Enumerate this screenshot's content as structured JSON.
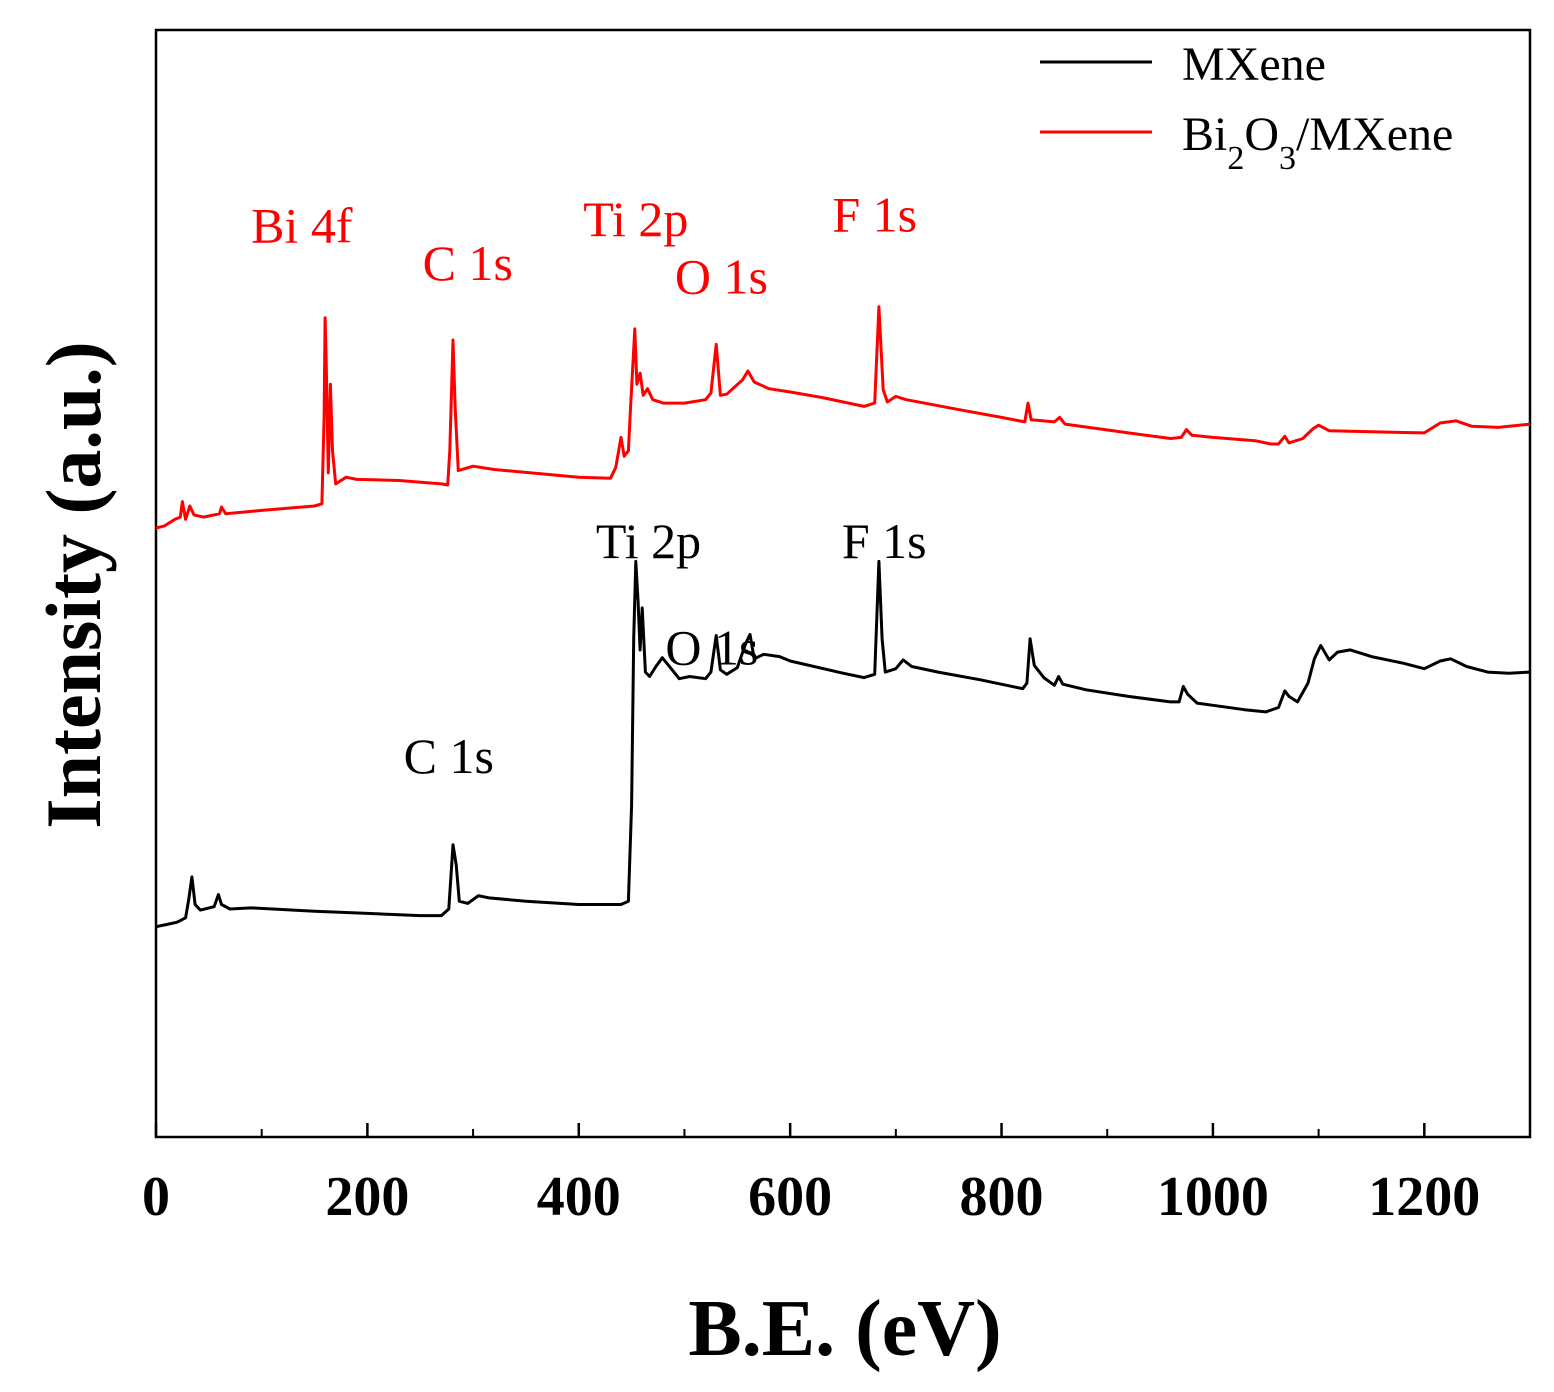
{
  "chart_data": {
    "type": "line",
    "title": "",
    "xlabel": "B.E. (eV)",
    "ylabel": "Intensity (a.u.)",
    "xlim": [
      0,
      1300
    ],
    "ylim": [
      0,
      100
    ],
    "x_ticks": [
      0,
      200,
      400,
      600,
      800,
      1000,
      1200
    ],
    "x_tick_labels": [
      "0",
      "200",
      "400",
      "600",
      "800",
      "1000",
      "1200"
    ],
    "x_minor_ticks": [
      100,
      300,
      500,
      700,
      900,
      1100
    ],
    "legend": {
      "position": "top-right",
      "entries": [
        {
          "series": "MXene",
          "text": "MXene"
        },
        {
          "series": "Bi2O3/MXene",
          "parts": [
            {
              "text": "Bi",
              "sub": false
            },
            {
              "text": "2",
              "sub": true
            },
            {
              "text": "O",
              "sub": false
            },
            {
              "text": "3",
              "sub": true
            },
            {
              "text": "/MXene",
              "sub": false
            }
          ]
        }
      ]
    },
    "series": [
      {
        "name": "MXene",
        "color": "#000000",
        "points": [
          [
            0,
            19.0
          ],
          [
            10,
            19.2
          ],
          [
            20,
            19.4
          ],
          [
            28,
            19.8
          ],
          [
            31,
            21.5
          ],
          [
            34,
            23.5
          ],
          [
            37,
            21.0
          ],
          [
            42,
            20.5
          ],
          [
            55,
            20.8
          ],
          [
            59,
            21.9
          ],
          [
            62,
            21.0
          ],
          [
            70,
            20.6
          ],
          [
            90,
            20.7
          ],
          [
            150,
            20.4
          ],
          [
            200,
            20.2
          ],
          [
            250,
            20.0
          ],
          [
            270,
            20.0
          ],
          [
            277,
            20.6
          ],
          [
            281,
            26.4
          ],
          [
            284,
            24.6
          ],
          [
            287,
            21.3
          ],
          [
            295,
            21.1
          ],
          [
            305,
            21.8
          ],
          [
            315,
            21.6
          ],
          [
            350,
            21.3
          ],
          [
            400,
            21.0
          ],
          [
            440,
            21.0
          ],
          [
            447,
            21.3
          ],
          [
            450,
            30.0
          ],
          [
            452,
            45.0
          ],
          [
            454,
            52.0
          ],
          [
            456,
            48.5
          ],
          [
            458,
            44.0
          ],
          [
            460,
            47.8
          ],
          [
            463,
            42.0
          ],
          [
            467,
            41.6
          ],
          [
            473,
            42.5
          ],
          [
            479,
            43.3
          ],
          [
            485,
            42.6
          ],
          [
            495,
            41.4
          ],
          [
            505,
            41.6
          ],
          [
            520,
            41.4
          ],
          [
            525,
            42.0
          ],
          [
            530,
            45.3
          ],
          [
            534,
            42.2
          ],
          [
            540,
            41.8
          ],
          [
            550,
            42.4
          ],
          [
            558,
            44.6
          ],
          [
            562,
            45.4
          ],
          [
            566,
            43.2
          ],
          [
            575,
            43.6
          ],
          [
            590,
            43.4
          ],
          [
            600,
            43.0
          ],
          [
            650,
            41.9
          ],
          [
            670,
            41.5
          ],
          [
            680,
            41.8
          ],
          [
            684,
            52.0
          ],
          [
            687,
            45.0
          ],
          [
            690,
            42.0
          ],
          [
            700,
            42.3
          ],
          [
            707,
            43.1
          ],
          [
            715,
            42.5
          ],
          [
            740,
            42.0
          ],
          [
            780,
            41.3
          ],
          [
            820,
            40.5
          ],
          [
            824,
            41.0
          ],
          [
            827,
            45.0
          ],
          [
            831,
            42.6
          ],
          [
            840,
            41.5
          ],
          [
            850,
            40.8
          ],
          [
            854,
            41.6
          ],
          [
            858,
            40.9
          ],
          [
            880,
            40.4
          ],
          [
            920,
            39.8
          ],
          [
            960,
            39.3
          ],
          [
            968,
            39.3
          ],
          [
            972,
            40.7
          ],
          [
            976,
            40.0
          ],
          [
            985,
            39.2
          ],
          [
            1000,
            39.0
          ],
          [
            1030,
            38.6
          ],
          [
            1050,
            38.4
          ],
          [
            1062,
            38.8
          ],
          [
            1068,
            40.3
          ],
          [
            1072,
            39.8
          ],
          [
            1080,
            39.3
          ],
          [
            1090,
            41.0
          ],
          [
            1096,
            43.2
          ],
          [
            1102,
            44.4
          ],
          [
            1110,
            43.1
          ],
          [
            1118,
            43.8
          ],
          [
            1130,
            44.0
          ],
          [
            1150,
            43.4
          ],
          [
            1180,
            42.8
          ],
          [
            1200,
            42.3
          ],
          [
            1215,
            43.0
          ],
          [
            1225,
            43.2
          ],
          [
            1240,
            42.5
          ],
          [
            1260,
            42.0
          ],
          [
            1280,
            41.9
          ],
          [
            1300,
            42.0
          ]
        ]
      },
      {
        "name": "Bi2O3/MXene",
        "color": "#ff0000",
        "points": [
          [
            0,
            55.0
          ],
          [
            8,
            55.2
          ],
          [
            18,
            55.8
          ],
          [
            23,
            56.0
          ],
          [
            25,
            57.4
          ],
          [
            28,
            55.8
          ],
          [
            32,
            57.0
          ],
          [
            36,
            56.2
          ],
          [
            45,
            56.0
          ],
          [
            60,
            56.3
          ],
          [
            62,
            56.9
          ],
          [
            66,
            56.3
          ],
          [
            100,
            56.6
          ],
          [
            150,
            57.0
          ],
          [
            157,
            57.2
          ],
          [
            159,
            65.0
          ],
          [
            160,
            74.0
          ],
          [
            161,
            70.0
          ],
          [
            163,
            60.0
          ],
          [
            165,
            68.0
          ],
          [
            167,
            62.0
          ],
          [
            170,
            59.0
          ],
          [
            180,
            59.6
          ],
          [
            190,
            59.4
          ],
          [
            230,
            59.3
          ],
          [
            270,
            59.0
          ],
          [
            276,
            58.9
          ],
          [
            278,
            62.0
          ],
          [
            281,
            72.0
          ],
          [
            283,
            66.0
          ],
          [
            286,
            60.2
          ],
          [
            300,
            60.6
          ],
          [
            320,
            60.3
          ],
          [
            400,
            59.6
          ],
          [
            430,
            59.5
          ],
          [
            435,
            60.5
          ],
          [
            440,
            63.2
          ],
          [
            443,
            61.5
          ],
          [
            447,
            62.0
          ],
          [
            449,
            66.0
          ],
          [
            453,
            73.0
          ],
          [
            455,
            68.0
          ],
          [
            458,
            69.0
          ],
          [
            461,
            67.0
          ],
          [
            465,
            67.6
          ],
          [
            470,
            66.6
          ],
          [
            480,
            66.3
          ],
          [
            500,
            66.3
          ],
          [
            520,
            66.6
          ],
          [
            525,
            67.2
          ],
          [
            530,
            71.6
          ],
          [
            534,
            67.0
          ],
          [
            540,
            67.1
          ],
          [
            555,
            68.4
          ],
          [
            560,
            69.2
          ],
          [
            566,
            68.2
          ],
          [
            580,
            67.6
          ],
          [
            600,
            67.3
          ],
          [
            630,
            66.8
          ],
          [
            670,
            66.0
          ],
          [
            680,
            66.3
          ],
          [
            684,
            75.0
          ],
          [
            688,
            67.5
          ],
          [
            692,
            66.4
          ],
          [
            700,
            66.9
          ],
          [
            710,
            66.6
          ],
          [
            760,
            65.7
          ],
          [
            800,
            65.0
          ],
          [
            822,
            64.6
          ],
          [
            825,
            66.3
          ],
          [
            828,
            64.8
          ],
          [
            850,
            64.6
          ],
          [
            855,
            65.0
          ],
          [
            860,
            64.4
          ],
          [
            920,
            63.6
          ],
          [
            960,
            63.1
          ],
          [
            970,
            63.2
          ],
          [
            975,
            63.9
          ],
          [
            980,
            63.4
          ],
          [
            1000,
            63.2
          ],
          [
            1040,
            62.9
          ],
          [
            1055,
            62.6
          ],
          [
            1062,
            62.6
          ],
          [
            1068,
            63.3
          ],
          [
            1072,
            62.7
          ],
          [
            1085,
            63.1
          ],
          [
            1095,
            64.0
          ],
          [
            1100,
            64.3
          ],
          [
            1110,
            63.8
          ],
          [
            1150,
            63.7
          ],
          [
            1200,
            63.6
          ],
          [
            1215,
            64.5
          ],
          [
            1230,
            64.7
          ],
          [
            1245,
            64.2
          ],
          [
            1270,
            64.1
          ],
          [
            1300,
            64.4
          ]
        ]
      }
    ],
    "annotations": [
      {
        "series": "Bi2O3/MXene",
        "text": "Bi 4f",
        "x": 138,
        "y": 80.8
      },
      {
        "series": "Bi2O3/MXene",
        "text": "C 1s",
        "x": 295,
        "y": 77.4
      },
      {
        "series": "Bi2O3/MXene",
        "text": "Ti 2p",
        "x": 454,
        "y": 81.4
      },
      {
        "series": "Bi2O3/MXene",
        "text": "O 1s",
        "x": 535,
        "y": 76.2
      },
      {
        "series": "Bi2O3/MXene",
        "text": "F 1s",
        "x": 680,
        "y": 81.8
      },
      {
        "series": "MXene",
        "text": "Ti 2p",
        "x": 466,
        "y": 52.3
      },
      {
        "series": "MXene",
        "text": "O 1s",
        "x": 526,
        "y": 42.7
      },
      {
        "series": "MXene",
        "text": "F 1s",
        "x": 689,
        "y": 52.3
      },
      {
        "series": "MXene",
        "text": "C 1s",
        "x": 277,
        "y": 32.9
      }
    ]
  }
}
